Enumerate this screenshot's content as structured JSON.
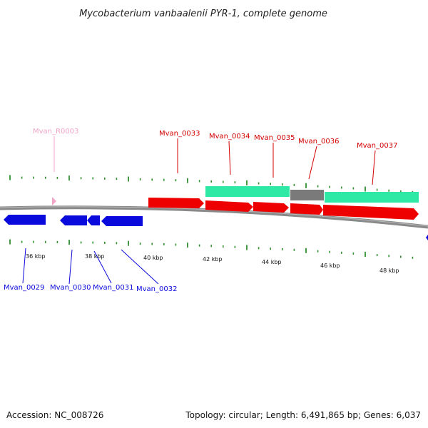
{
  "title": "Mycobacterium vanbaalenii PYR-1, complete genome",
  "footer": {
    "accession": "Accession: NC_008726",
    "summary": "Topology: circular; Length: 6,491,865 bp; Genes: 6,037"
  },
  "colors": {
    "forward_gene": "#ee0000",
    "reverse_gene": "#0a0adc",
    "rna_gene": "#f4a6c8",
    "mature_region": "#2ee8a6",
    "region_gap": "#808080",
    "backbone": "#808080",
    "tick": "#2f8f2f"
  },
  "scale": {
    "tick_labels": [
      "36 kbp",
      "38 kbp",
      "40 kbp",
      "42 kbp",
      "44 kbp",
      "46 kbp",
      "48 kbp"
    ]
  },
  "gene_labels": {
    "top": [
      "Mvan_R0003",
      "Mvan_0033",
      "Mvan_0034",
      "Mvan_0035",
      "Mvan_0036",
      "Mvan_0037"
    ],
    "bottom": [
      "Mvan_0029",
      "Mvan_0030",
      "Mvan_0031",
      "Mvan_0032"
    ]
  }
}
